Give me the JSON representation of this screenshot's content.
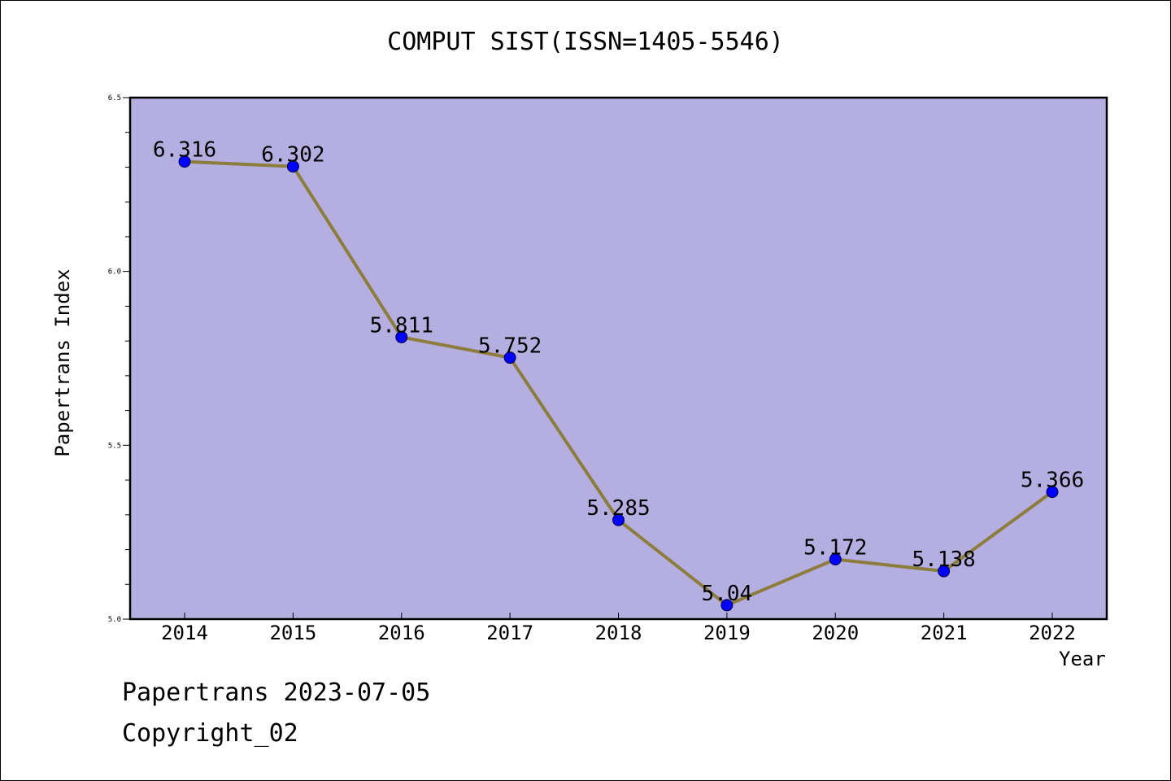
{
  "title": "COMPUT SIST(ISSN=1405-5546)",
  "footer": {
    "date_line": "Papertrans 2023-07-05",
    "copyright": "Copyright_02"
  },
  "colors": {
    "plot_background": "#b5aee1",
    "line": "#8c7d3c",
    "marker": "#0000ff"
  },
  "chart_data": {
    "type": "line",
    "title": "COMPUT SIST(ISSN=1405-5546)",
    "xlabel": "Year",
    "ylabel": "Papertrans Index",
    "categories": [
      "2014",
      "2015",
      "2016",
      "2017",
      "2018",
      "2019",
      "2020",
      "2021",
      "2022"
    ],
    "values": [
      6.316,
      6.302,
      5.811,
      5.752,
      5.285,
      5.04,
      5.172,
      5.138,
      5.366
    ],
    "data_labels": [
      "6.316",
      "6.302",
      "5.811",
      "5.752",
      "5.285",
      "5.04",
      "5.172",
      "5.138",
      "5.366"
    ],
    "ylim": [
      5.0,
      6.5
    ],
    "y_ticks": [
      "5.0",
      "5.5",
      "6.0",
      "6.5"
    ],
    "y_minor_step": 0.1,
    "grid": false,
    "legend": "none"
  }
}
